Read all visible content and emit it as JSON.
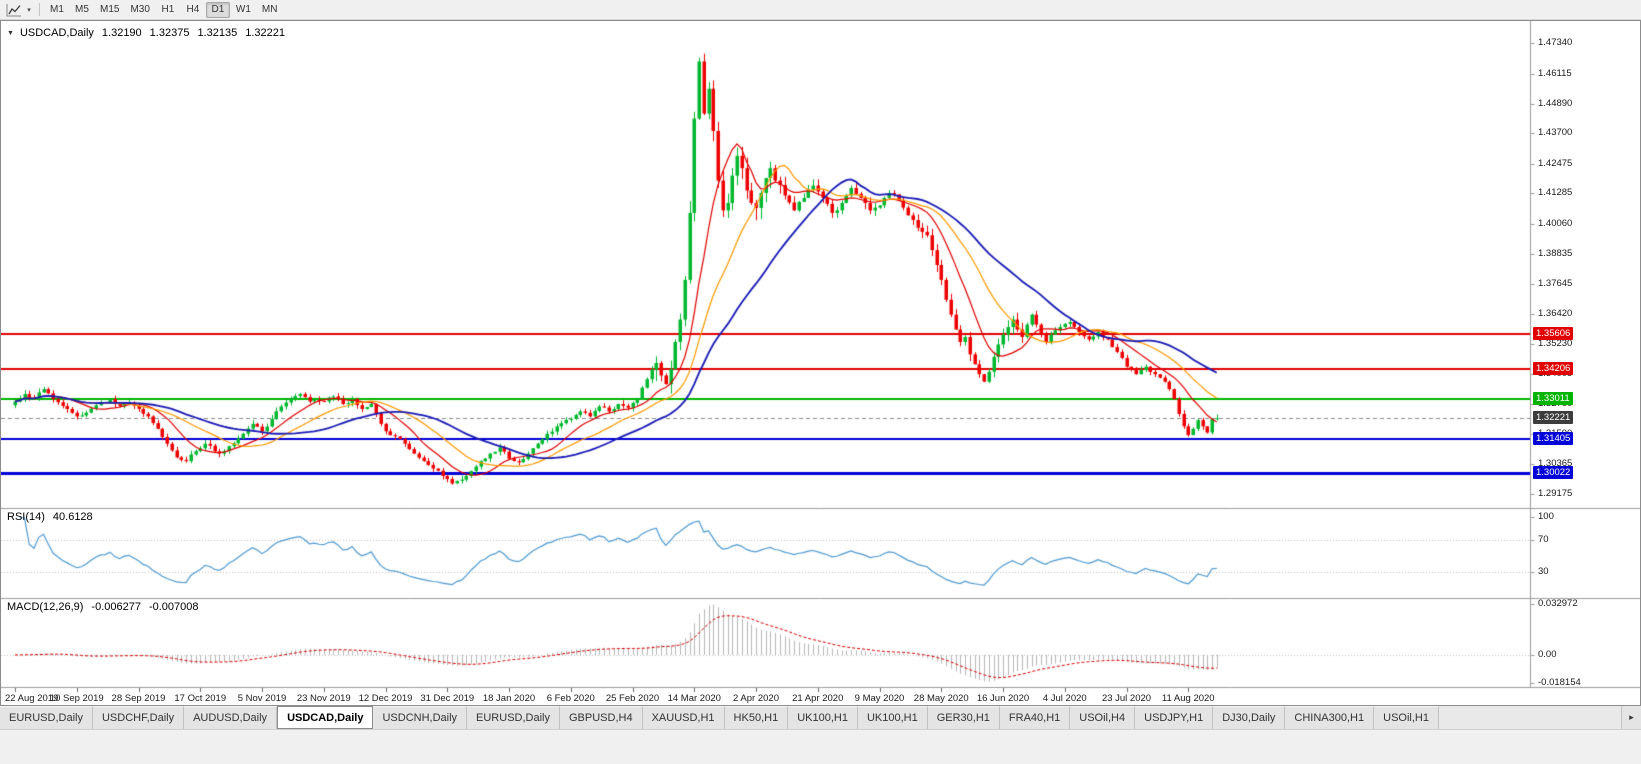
{
  "toolbar": {
    "timeframes": [
      "M1",
      "M5",
      "M15",
      "M30",
      "H1",
      "H4",
      "D1",
      "W1",
      "MN"
    ],
    "active": "D1",
    "dropdown_caret": "▾"
  },
  "chart_header": {
    "collapse_glyph": "▼",
    "symbol": "USDCAD,Daily",
    "open": "1.32190",
    "high": "1.32375",
    "low": "1.32135",
    "close": "1.32221"
  },
  "price_axis": {
    "ticks": [
      "1.47340",
      "1.46115",
      "1.44890",
      "1.43700",
      "1.42475",
      "1.41285",
      "1.40060",
      "1.38835",
      "1.37645",
      "1.36420",
      "1.35230",
      "1.34005",
      "1.32780",
      "1.31590",
      "1.30365",
      "1.29175"
    ]
  },
  "levels": [
    {
      "value": 1.35606,
      "label": "1.35606",
      "color": "#e00000",
      "width": 2
    },
    {
      "value": 1.34206,
      "label": "1.34206",
      "color": "#e00000",
      "width": 2
    },
    {
      "value": 1.33011,
      "label": "1.33011",
      "color": "#00b400",
      "width": 2
    },
    {
      "value": 1.31405,
      "label": "1.31405",
      "color": "#0000d8",
      "width": 2
    },
    {
      "value": 1.30022,
      "label": "1.30022",
      "color": "#0000d8",
      "width": 3
    }
  ],
  "current_price": {
    "value": 1.32221,
    "label": "1.32221",
    "color": "#3c3c3c"
  },
  "rsi_panel": {
    "name": "RSI(14)",
    "value": "40.6128",
    "line_color": "#4f9ad2",
    "ticks": [
      {
        "value": 100,
        "label": "100"
      },
      {
        "value": 70,
        "label": "70"
      },
      {
        "value": 30,
        "label": "30"
      }
    ]
  },
  "macd_panel": {
    "name": "MACD(12,26,9)",
    "value_main": "-0.006277",
    "value_signal": "-0.007008",
    "ylim": [
      -0.018154,
      0.032972
    ],
    "histogram_color": "#b6b6b6",
    "signal_color": "#d40000",
    "ticks": [
      {
        "value": 0.032972,
        "label": "0.032972"
      },
      {
        "value": 0,
        "label": "0.00"
      },
      {
        "value": -0.018154,
        "label": "-0.018154"
      }
    ]
  },
  "date_axis": [
    "22 Aug 2019",
    "10 Sep 2019",
    "28 Sep 2019",
    "17 Oct 2019",
    "5 Nov 2019",
    "23 Nov 2019",
    "12 Dec 2019",
    "31 Dec 2019",
    "18 Jan 2020",
    "6 Feb 2020",
    "25 Feb 2020",
    "14 Mar 2020",
    "2 Apr 2020",
    "21 Apr 2020",
    "9 May 2020",
    "28 May 2020",
    "16 Jun 2020",
    "4 Jul 2020",
    "23 Jul 2020",
    "11 Aug 2020"
  ],
  "tabs": {
    "items": [
      "EURUSD,Daily",
      "USDCHF,Daily",
      "AUDUSD,Daily",
      "USDCAD,Daily",
      "USDCNH,Daily",
      "EURUSD,Daily",
      "GBPUSD,H4",
      "XAUUSD,H1",
      "HK50,H1",
      "UK100,H1",
      "UK100,H1",
      "GER30,H1",
      "FRA40,H1",
      "USOil,H4",
      "USDJPY,H1",
      "DJ30,Daily",
      "CHINA300,H1",
      "USOil,H1"
    ],
    "active_index": 3,
    "scroll_right": "▸"
  },
  "chart_data": {
    "type": "candlestick",
    "symbol": "USDCAD",
    "timeframe": "Daily",
    "ylim": [
      1.2865,
      1.4815
    ],
    "count": 254,
    "seed": 7,
    "up_color": "#00b82e",
    "down_color": "#ee0000",
    "last_candle": {
      "open": 1.3219,
      "high": 1.32375,
      "low": 1.32135,
      "close": 1.32221
    },
    "moving_averages": [
      {
        "type": "sma",
        "period": 10,
        "color": "#e00000",
        "width": 1.2
      },
      {
        "type": "sma",
        "period": 20,
        "color": "#ff9900",
        "width": 1.2
      },
      {
        "type": "sma",
        "period": 34,
        "color": "#1a1ab4",
        "width": 1.8
      }
    ],
    "indicators": {
      "rsi_period": 14,
      "macd": [
        12,
        26,
        9
      ]
    },
    "volatility_regions": [
      {
        "from": 0,
        "to": 134,
        "noise": 0.0007,
        "wick": 0.0016
      },
      {
        "from": 135,
        "to": 162,
        "noise": 0.0018,
        "wick": 0.005
      },
      {
        "from": 163,
        "to": 192,
        "noise": 0.001,
        "wick": 0.0026
      },
      {
        "from": 193,
        "to": 212,
        "noise": 0.0012,
        "wick": 0.003
      },
      {
        "from": 213,
        "to": 253,
        "noise": 0.0006,
        "wick": 0.0016
      }
    ],
    "close_anchors": [
      [
        0,
        1.329
      ],
      [
        2,
        1.332
      ],
      [
        4,
        1.33
      ],
      [
        6,
        1.334
      ],
      [
        8,
        1.33
      ],
      [
        11,
        1.326
      ],
      [
        13,
        1.323
      ],
      [
        15,
        1.3245
      ],
      [
        17,
        1.3275
      ],
      [
        20,
        1.33
      ],
      [
        22,
        1.327
      ],
      [
        24,
        1.3285
      ],
      [
        26,
        1.326
      ],
      [
        28,
        1.323
      ],
      [
        30,
        1.318
      ],
      [
        32,
        1.312
      ],
      [
        34,
        1.3065
      ],
      [
        36,
        1.305
      ],
      [
        38,
        1.309
      ],
      [
        40,
        1.312
      ],
      [
        43,
        1.308
      ],
      [
        45,
        1.311
      ],
      [
        48,
        1.316
      ],
      [
        50,
        1.32
      ],
      [
        52,
        1.317
      ],
      [
        54,
        1.322
      ],
      [
        56,
        1.327
      ],
      [
        58,
        1.33
      ],
      [
        60,
        1.332
      ],
      [
        62,
        1.329
      ],
      [
        65,
        1.329
      ],
      [
        67,
        1.331
      ],
      [
        69,
        1.328
      ],
      [
        71,
        1.33
      ],
      [
        73,
        1.326
      ],
      [
        75,
        1.328
      ],
      [
        78,
        1.317
      ],
      [
        80,
        1.315
      ],
      [
        82,
        1.312
      ],
      [
        84,
        1.308
      ],
      [
        86,
        1.305
      ],
      [
        88,
        1.302
      ],
      [
        90,
        1.299
      ],
      [
        92,
        1.296
      ],
      [
        94,
        1.2975
      ],
      [
        96,
        1.301
      ],
      [
        98,
        1.305
      ],
      [
        100,
        1.308
      ],
      [
        102,
        1.3105
      ],
      [
        104,
        1.306
      ],
      [
        106,
        1.3045
      ],
      [
        108,
        1.308
      ],
      [
        110,
        1.312
      ],
      [
        112,
        1.316
      ],
      [
        114,
        1.319
      ],
      [
        117,
        1.322
      ],
      [
        119,
        1.325
      ],
      [
        121,
        1.323
      ],
      [
        123,
        1.327
      ],
      [
        125,
        1.325
      ],
      [
        127,
        1.328
      ],
      [
        129,
        1.3265
      ],
      [
        131,
        1.33
      ],
      [
        133,
        1.338
      ],
      [
        135,
        1.3445
      ],
      [
        136,
        1.3395
      ],
      [
        137,
        1.336
      ],
      [
        138,
        1.342
      ],
      [
        139,
        1.353
      ],
      [
        140,
        1.362
      ],
      [
        141,
        1.378
      ],
      [
        142,
        1.405
      ],
      [
        143,
        1.443
      ],
      [
        144,
        1.466
      ],
      [
        145,
        1.445
      ],
      [
        146,
        1.455
      ],
      [
        147,
        1.438
      ],
      [
        148,
        1.418
      ],
      [
        149,
        1.406
      ],
      [
        150,
        1.409
      ],
      [
        151,
        1.42
      ],
      [
        152,
        1.428
      ],
      [
        153,
        1.423
      ],
      [
        154,
        1.414
      ],
      [
        155,
        1.409
      ],
      [
        156,
        1.407
      ],
      [
        157,
        1.413
      ],
      [
        158,
        1.419
      ],
      [
        159,
        1.423
      ],
      [
        160,
        1.418
      ],
      [
        162,
        1.412
      ],
      [
        164,
        1.406
      ],
      [
        166,
        1.411
      ],
      [
        168,
        1.416
      ],
      [
        170,
        1.411
      ],
      [
        172,
        1.405
      ],
      [
        174,
        1.409
      ],
      [
        176,
        1.415
      ],
      [
        178,
        1.411
      ],
      [
        180,
        1.406
      ],
      [
        182,
        1.408
      ],
      [
        184,
        1.413
      ],
      [
        186,
        1.41
      ],
      [
        188,
        1.404
      ],
      [
        190,
        1.399
      ],
      [
        192,
        1.396
      ],
      [
        193,
        1.39
      ],
      [
        194,
        1.384
      ],
      [
        195,
        1.378
      ],
      [
        196,
        1.37
      ],
      [
        197,
        1.364
      ],
      [
        198,
        1.358
      ],
      [
        199,
        1.353
      ],
      [
        200,
        1.355
      ],
      [
        201,
        1.348
      ],
      [
        202,
        1.344
      ],
      [
        203,
        1.34
      ],
      [
        204,
        1.337
      ],
      [
        205,
        1.341
      ],
      [
        206,
        1.347
      ],
      [
        207,
        1.352
      ],
      [
        208,
        1.356
      ],
      [
        209,
        1.359
      ],
      [
        210,
        1.362
      ],
      [
        211,
        1.358
      ],
      [
        212,
        1.355
      ],
      [
        213,
        1.36
      ],
      [
        214,
        1.364
      ],
      [
        215,
        1.36
      ],
      [
        216,
        1.356
      ],
      [
        217,
        1.353
      ],
      [
        218,
        1.356
      ],
      [
        220,
        1.359
      ],
      [
        222,
        1.361
      ],
      [
        224,
        1.357
      ],
      [
        226,
        1.354
      ],
      [
        228,
        1.357
      ],
      [
        230,
        1.354
      ],
      [
        232,
        1.349
      ],
      [
        234,
        1.343
      ],
      [
        236,
        1.34
      ],
      [
        238,
        1.343
      ],
      [
        240,
        1.34
      ],
      [
        242,
        1.337
      ],
      [
        243,
        1.334
      ],
      [
        244,
        1.33
      ],
      [
        245,
        1.324
      ],
      [
        246,
        1.319
      ],
      [
        247,
        1.3155
      ],
      [
        248,
        1.318
      ],
      [
        249,
        1.3215
      ],
      [
        250,
        1.319
      ],
      [
        251,
        1.3165
      ],
      [
        252,
        1.3219
      ],
      [
        253,
        1.32221
      ]
    ]
  }
}
